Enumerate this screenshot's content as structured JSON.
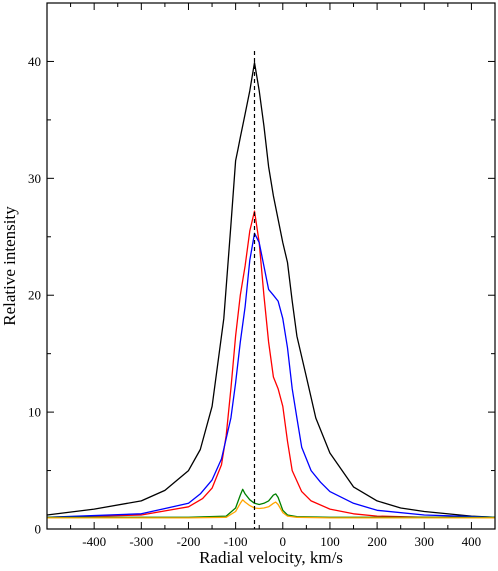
{
  "chart_data": {
    "type": "line",
    "title": "",
    "xlabel": "Radial velocity, km/s",
    "ylabel": "Relative intensity",
    "xlim": [
      -500,
      450
    ],
    "ylim": [
      0,
      45
    ],
    "xticks": [
      -400,
      -300,
      -200,
      -100,
      0,
      100,
      200,
      300,
      400
    ],
    "yticks": [
      0,
      10,
      20,
      30,
      40
    ],
    "grid": false,
    "legend": "none",
    "vline": {
      "x": -60,
      "style": "dashed",
      "color": "#000000"
    },
    "series": [
      {
        "color": "#000000",
        "x": [
          -500,
          -400,
          -300,
          -250,
          -200,
          -175,
          -150,
          -125,
          -110,
          -100,
          -95,
          -90,
          -85,
          -80,
          -70,
          -60,
          -50,
          -40,
          -30,
          -20,
          -10,
          0,
          10,
          20,
          30,
          50,
          70,
          100,
          150,
          200,
          250,
          300,
          400,
          450
        ],
        "y": [
          1.2,
          1.7,
          2.4,
          3.3,
          5.0,
          6.8,
          10.5,
          18.0,
          26.0,
          31.5,
          32.5,
          33.5,
          34.5,
          35.5,
          37.5,
          39.9,
          37.5,
          34.5,
          31.0,
          28.5,
          26.5,
          24.5,
          22.8,
          19.5,
          16.5,
          13.0,
          9.5,
          6.5,
          3.6,
          2.4,
          1.8,
          1.5,
          1.1,
          1.0
        ]
      },
      {
        "color": "#ff0000",
        "x": [
          -500,
          -300,
          -200,
          -170,
          -150,
          -130,
          -120,
          -110,
          -100,
          -90,
          -80,
          -70,
          -60,
          -50,
          -40,
          -30,
          -20,
          -10,
          0,
          10,
          20,
          40,
          60,
          100,
          150,
          200,
          300,
          450
        ],
        "y": [
          1.0,
          1.2,
          1.9,
          2.6,
          3.5,
          5.5,
          8.0,
          12.0,
          16.5,
          20.0,
          22.5,
          25.5,
          27.2,
          24.5,
          20.0,
          16.0,
          13.0,
          12.0,
          10.5,
          7.5,
          5.0,
          3.2,
          2.4,
          1.7,
          1.3,
          1.1,
          1.0,
          1.0
        ]
      },
      {
        "color": "#0000ff",
        "x": [
          -500,
          -300,
          -200,
          -175,
          -150,
          -130,
          -110,
          -100,
          -90,
          -80,
          -70,
          -60,
          -50,
          -40,
          -30,
          -20,
          -10,
          0,
          10,
          20,
          30,
          40,
          60,
          80,
          100,
          150,
          200,
          300,
          450
        ],
        "y": [
          1.0,
          1.3,
          2.2,
          3.0,
          4.2,
          6.0,
          9.5,
          12.5,
          16.0,
          19.0,
          23.0,
          25.3,
          24.5,
          22.5,
          20.5,
          20.0,
          19.5,
          18.0,
          15.5,
          12.0,
          9.5,
          7.0,
          5.0,
          4.0,
          3.2,
          2.2,
          1.6,
          1.2,
          1.0
        ]
      },
      {
        "color": "#008000",
        "x": [
          -500,
          -200,
          -120,
          -100,
          -90,
          -85,
          -80,
          -70,
          -60,
          -50,
          -40,
          -30,
          -20,
          -15,
          -10,
          0,
          10,
          30,
          100,
          200,
          450
        ],
        "y": [
          1.0,
          1.0,
          1.1,
          1.8,
          2.9,
          3.4,
          3.0,
          2.5,
          2.2,
          2.1,
          2.2,
          2.4,
          2.9,
          3.0,
          2.7,
          1.6,
          1.2,
          1.05,
          1.0,
          1.0,
          1.0
        ]
      },
      {
        "color": "#ffa500",
        "x": [
          -500,
          -200,
          -120,
          -100,
          -90,
          -85,
          -80,
          -70,
          -60,
          -50,
          -40,
          -30,
          -20,
          -15,
          -10,
          0,
          10,
          30,
          100,
          200,
          450
        ],
        "y": [
          0.95,
          0.95,
          1.0,
          1.5,
          2.2,
          2.5,
          2.3,
          2.0,
          1.8,
          1.75,
          1.8,
          1.9,
          2.2,
          2.3,
          2.1,
          1.4,
          1.1,
          1.0,
          0.95,
          0.95,
          0.95
        ]
      }
    ]
  }
}
